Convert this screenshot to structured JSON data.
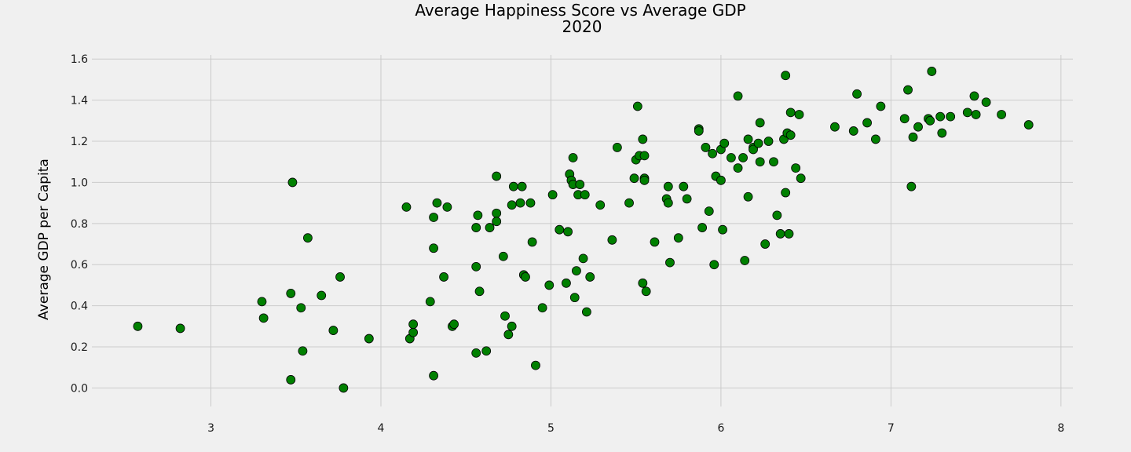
{
  "chart_data": {
    "type": "scatter",
    "title": "Average Happiness Score vs Average GDP",
    "subtitle": "2020",
    "xlabel": "",
    "ylabel": "Average GDP per Capita",
    "xlim": [
      2.3,
      8.07
    ],
    "ylim": [
      -0.09,
      1.62
    ],
    "xticks": [
      3,
      4,
      5,
      6,
      7,
      8
    ],
    "yticks": [
      0.0,
      0.2,
      0.4,
      0.6,
      0.8,
      1.0,
      1.2,
      1.4,
      1.6
    ],
    "grid": true,
    "legend": "none",
    "colors": {
      "point_fill": "#008000",
      "point_edge": "#000000",
      "background": "#f0f0f0",
      "grid": "#cbcbcb"
    },
    "points": [
      [
        2.57,
        0.3
      ],
      [
        2.82,
        0.29
      ],
      [
        3.3,
        0.42
      ],
      [
        3.31,
        0.34
      ],
      [
        3.48,
        1.0
      ],
      [
        3.47,
        0.46
      ],
      [
        3.47,
        0.04
      ],
      [
        3.53,
        0.39
      ],
      [
        3.54,
        0.18
      ],
      [
        3.57,
        0.73
      ],
      [
        3.65,
        0.45
      ],
      [
        3.72,
        0.28
      ],
      [
        3.76,
        0.54
      ],
      [
        3.78,
        0.0
      ],
      [
        3.93,
        0.24
      ],
      [
        4.15,
        0.88
      ],
      [
        4.17,
        0.24
      ],
      [
        4.19,
        0.27
      ],
      [
        4.19,
        0.31
      ],
      [
        4.29,
        0.42
      ],
      [
        4.31,
        0.83
      ],
      [
        4.31,
        0.68
      ],
      [
        4.31,
        0.06
      ],
      [
        4.33,
        0.9
      ],
      [
        4.37,
        0.54
      ],
      [
        4.39,
        0.88
      ],
      [
        4.42,
        0.3
      ],
      [
        4.43,
        0.31
      ],
      [
        4.56,
        0.59
      ],
      [
        4.56,
        0.78
      ],
      [
        4.56,
        0.17
      ],
      [
        4.57,
        0.84
      ],
      [
        4.58,
        0.47
      ],
      [
        4.62,
        0.18
      ],
      [
        4.64,
        0.78
      ],
      [
        4.68,
        1.03
      ],
      [
        4.68,
        0.85
      ],
      [
        4.68,
        0.81
      ],
      [
        4.72,
        0.64
      ],
      [
        4.73,
        0.35
      ],
      [
        4.75,
        0.26
      ],
      [
        4.77,
        0.89
      ],
      [
        4.77,
        0.3
      ],
      [
        4.78,
        0.98
      ],
      [
        4.82,
        0.9
      ],
      [
        4.83,
        0.98
      ],
      [
        4.84,
        0.55
      ],
      [
        4.85,
        0.54
      ],
      [
        4.88,
        0.9
      ],
      [
        4.89,
        0.71
      ],
      [
        4.91,
        0.11
      ],
      [
        4.95,
        0.39
      ],
      [
        4.99,
        0.5
      ],
      [
        5.01,
        0.94
      ],
      [
        5.05,
        0.77
      ],
      [
        5.09,
        0.51
      ],
      [
        5.1,
        0.76
      ],
      [
        5.11,
        1.04
      ],
      [
        5.12,
        1.01
      ],
      [
        5.13,
        0.99
      ],
      [
        5.13,
        1.12
      ],
      [
        5.14,
        0.44
      ],
      [
        5.15,
        0.57
      ],
      [
        5.16,
        0.94
      ],
      [
        5.17,
        0.99
      ],
      [
        5.19,
        0.63
      ],
      [
        5.2,
        0.94
      ],
      [
        5.21,
        0.37
      ],
      [
        5.23,
        0.54
      ],
      [
        5.29,
        0.89
      ],
      [
        5.36,
        0.72
      ],
      [
        5.39,
        1.17
      ],
      [
        5.46,
        0.9
      ],
      [
        5.49,
        1.02
      ],
      [
        5.5,
        1.11
      ],
      [
        5.51,
        1.37
      ],
      [
        5.52,
        1.13
      ],
      [
        5.54,
        1.21
      ],
      [
        5.54,
        0.51
      ],
      [
        5.55,
        1.02
      ],
      [
        5.55,
        1.01
      ],
      [
        5.55,
        1.13
      ],
      [
        5.56,
        0.47
      ],
      [
        5.61,
        0.71
      ],
      [
        5.68,
        0.92
      ],
      [
        5.69,
        0.98
      ],
      [
        5.69,
        0.9
      ],
      [
        5.7,
        0.61
      ],
      [
        5.75,
        0.73
      ],
      [
        5.78,
        0.98
      ],
      [
        5.8,
        0.92
      ],
      [
        5.87,
        1.26
      ],
      [
        5.87,
        1.25
      ],
      [
        5.89,
        0.78
      ],
      [
        5.91,
        1.17
      ],
      [
        5.93,
        0.86
      ],
      [
        5.95,
        1.14
      ],
      [
        5.96,
        0.6
      ],
      [
        5.97,
        1.03
      ],
      [
        6.0,
        1.16
      ],
      [
        6.0,
        1.01
      ],
      [
        6.01,
        0.77
      ],
      [
        6.02,
        1.19
      ],
      [
        6.06,
        1.12
      ],
      [
        6.1,
        1.42
      ],
      [
        6.1,
        1.07
      ],
      [
        6.13,
        1.12
      ],
      [
        6.14,
        0.62
      ],
      [
        6.16,
        1.21
      ],
      [
        6.16,
        0.93
      ],
      [
        6.19,
        1.17
      ],
      [
        6.19,
        1.16
      ],
      [
        6.22,
        1.19
      ],
      [
        6.23,
        1.29
      ],
      [
        6.23,
        1.1
      ],
      [
        6.26,
        0.7
      ],
      [
        6.28,
        1.2
      ],
      [
        6.31,
        1.1
      ],
      [
        6.33,
        0.84
      ],
      [
        6.35,
        0.75
      ],
      [
        6.37,
        1.21
      ],
      [
        6.38,
        0.95
      ],
      [
        6.38,
        1.52
      ],
      [
        6.39,
        1.24
      ],
      [
        6.4,
        0.75
      ],
      [
        6.41,
        1.23
      ],
      [
        6.41,
        1.34
      ],
      [
        6.44,
        1.07
      ],
      [
        6.46,
        1.33
      ],
      [
        6.47,
        1.02
      ],
      [
        6.67,
        1.27
      ],
      [
        6.78,
        1.25
      ],
      [
        6.8,
        1.43
      ],
      [
        6.86,
        1.29
      ],
      [
        6.91,
        1.21
      ],
      [
        6.94,
        1.37
      ],
      [
        7.08,
        1.31
      ],
      [
        7.1,
        1.45
      ],
      [
        7.12,
        0.98
      ],
      [
        7.13,
        1.22
      ],
      [
        7.16,
        1.27
      ],
      [
        7.22,
        1.31
      ],
      [
        7.23,
        1.3
      ],
      [
        7.24,
        1.54
      ],
      [
        7.29,
        1.32
      ],
      [
        7.3,
        1.24
      ],
      [
        7.35,
        1.32
      ],
      [
        7.45,
        1.34
      ],
      [
        7.49,
        1.42
      ],
      [
        7.5,
        1.33
      ],
      [
        7.56,
        1.39
      ],
      [
        7.65,
        1.33
      ],
      [
        7.81,
        1.28
      ]
    ]
  }
}
